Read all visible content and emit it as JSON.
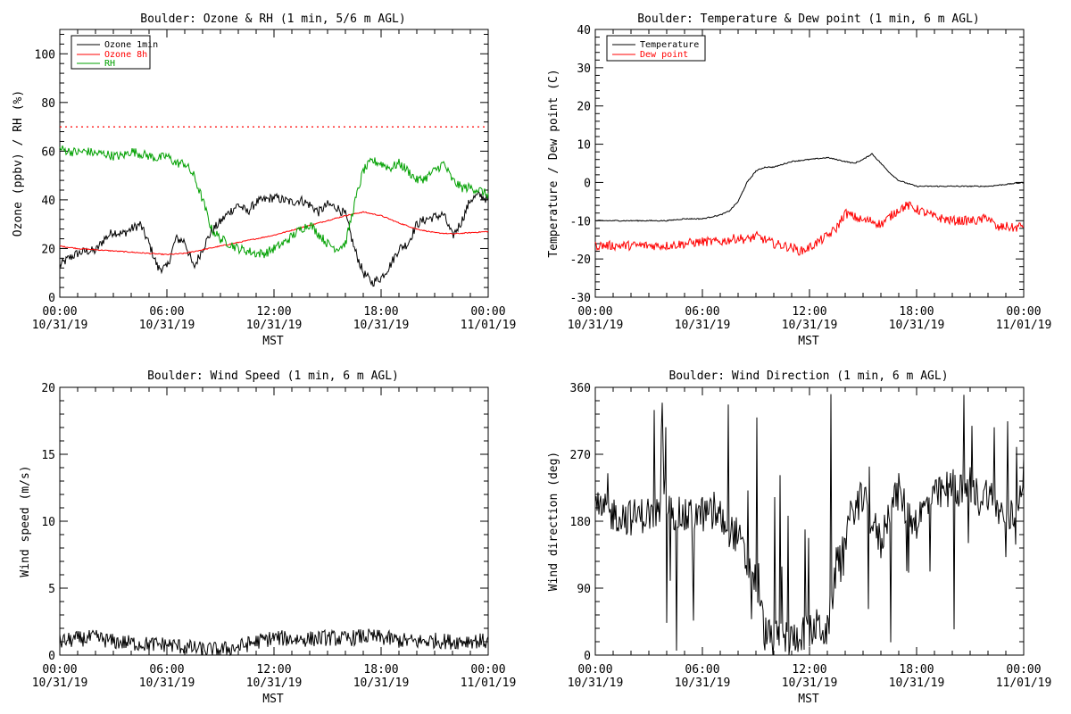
{
  "chart_data": [
    {
      "type": "line",
      "title": "Boulder: Ozone & RH (1 min, 5/6 m AGL)",
      "xlabel": "MST",
      "ylabel": "Ozone (ppbv) / RH (%)",
      "xlim": [
        0,
        24
      ],
      "ylim": [
        0,
        110
      ],
      "grid": false,
      "legend_position": "top-left",
      "x_ticks": [
        {
          "x": 0,
          "label": "00:00",
          "date": "10/31/19"
        },
        {
          "x": 6,
          "label": "06:00",
          "date": "10/31/19"
        },
        {
          "x": 12,
          "label": "12:00",
          "date": "10/31/19"
        },
        {
          "x": 18,
          "label": "18:00",
          "date": "10/31/19"
        },
        {
          "x": 24,
          "label": "00:00",
          "date": "11/01/19"
        }
      ],
      "y_ticks": [
        0,
        20,
        40,
        60,
        80,
        100
      ],
      "series": [
        {
          "name": "Ozone 1min",
          "color": "#000000",
          "style": "noisy",
          "x": [
            0,
            0.5,
            1,
            1.5,
            2,
            2.5,
            3,
            3.5,
            4,
            4.5,
            5,
            5.5,
            6,
            6.5,
            7,
            7.5,
            8,
            8.5,
            9,
            9.5,
            10,
            10.5,
            11,
            11.5,
            12,
            12.5,
            13,
            13.5,
            14,
            14.5,
            15,
            15.5,
            16,
            16.5,
            17,
            17.5,
            18,
            18.5,
            19,
            19.5,
            20,
            20.5,
            21,
            21.5,
            22,
            22.5,
            23,
            23.5,
            24
          ],
          "y": [
            13,
            16,
            18,
            19,
            19,
            24,
            27,
            26,
            28,
            30,
            22,
            12,
            12,
            24,
            23,
            12,
            20,
            27,
            31,
            35,
            38,
            35,
            39,
            40,
            41,
            40,
            39,
            40,
            38,
            35,
            38,
            37,
            34,
            20,
            10,
            6,
            8,
            13,
            20,
            22,
            30,
            32,
            33,
            34,
            25,
            31,
            40,
            42,
            40
          ]
        },
        {
          "name": "Ozone 8h",
          "color": "#ff0000",
          "style": "smooth",
          "x": [
            0,
            1,
            2,
            3,
            4,
            5,
            6,
            7,
            8,
            9,
            10,
            11,
            12,
            13,
            14,
            15,
            16,
            17,
            18,
            19,
            20,
            21,
            22,
            23,
            24
          ],
          "y": [
            21,
            20,
            19.5,
            19,
            18.5,
            18,
            17.5,
            18,
            19.5,
            21,
            22.5,
            24,
            25.5,
            27.5,
            29.5,
            31.5,
            33.5,
            35,
            33.5,
            30.5,
            28,
            26.5,
            26,
            26.5,
            27
          ]
        },
        {
          "name": "RH",
          "color": "#00a000",
          "style": "noisy",
          "x": [
            0,
            0.5,
            1,
            1.5,
            2,
            2.5,
            3,
            3.5,
            4,
            4.5,
            5,
            5.5,
            6,
            6.5,
            7,
            7.5,
            8,
            8.5,
            9,
            9.5,
            10,
            10.5,
            11,
            11.5,
            12,
            12.5,
            13,
            13.5,
            14,
            14.5,
            15,
            15.5,
            16,
            16.5,
            17,
            17.5,
            18,
            18.5,
            19,
            19.5,
            20,
            20.5,
            21,
            21.5,
            22,
            22.5,
            23,
            23.5,
            24
          ],
          "y": [
            61,
            60,
            59.5,
            60,
            59,
            59,
            58,
            58,
            60,
            59,
            58,
            57,
            58,
            55,
            55,
            50,
            40,
            28,
            24,
            22,
            20,
            19,
            18,
            18,
            20,
            22,
            25,
            28,
            30,
            26,
            22,
            20,
            22,
            38,
            52,
            56,
            55,
            53,
            55,
            52,
            48,
            49,
            52,
            55,
            48,
            45,
            45,
            44,
            42
          ]
        }
      ],
      "reference_lines": [
        {
          "y": 70,
          "color": "#ff0000",
          "style": "dotted"
        }
      ]
    },
    {
      "type": "line",
      "title": "Boulder: Temperature & Dew point (1 min, 6 m AGL)",
      "xlabel": "MST",
      "ylabel": "Temperature / Dew point (C)",
      "xlim": [
        0,
        24
      ],
      "ylim": [
        -30,
        40
      ],
      "grid": false,
      "legend_position": "top-left",
      "x_ticks": [
        {
          "x": 0,
          "label": "00:00",
          "date": "10/31/19"
        },
        {
          "x": 6,
          "label": "06:00",
          "date": "10/31/19"
        },
        {
          "x": 12,
          "label": "12:00",
          "date": "10/31/19"
        },
        {
          "x": 18,
          "label": "18:00",
          "date": "10/31/19"
        },
        {
          "x": 24,
          "label": "00:00",
          "date": "11/01/19"
        }
      ],
      "y_ticks": [
        -30,
        -20,
        -10,
        0,
        10,
        20,
        30,
        40
      ],
      "series": [
        {
          "name": "Temperature",
          "color": "#000000",
          "style": "smooth",
          "x": [
            0,
            1,
            2,
            3,
            4,
            5,
            6,
            7,
            7.5,
            8,
            8.5,
            9,
            9.5,
            10,
            11,
            12,
            13,
            14,
            14.5,
            15,
            15.5,
            16,
            16.5,
            17,
            18,
            19,
            20,
            21,
            22,
            23,
            24
          ],
          "y": [
            -10,
            -10,
            -10,
            -10,
            -10,
            -9.5,
            -9.5,
            -8.5,
            -7.5,
            -5,
            0,
            3,
            4,
            4,
            5.5,
            6,
            6.5,
            5.5,
            5,
            6,
            7.5,
            5,
            2.5,
            0.5,
            -1,
            -1,
            -1,
            -1,
            -1,
            -0.5,
            0
          ]
        },
        {
          "name": "Dew point",
          "color": "#ff0000",
          "style": "noisy",
          "x": [
            0,
            1,
            2,
            3,
            4,
            5,
            6,
            7,
            8,
            8.5,
            9,
            10,
            11,
            11.5,
            12,
            12.5,
            13,
            13.5,
            14,
            14.5,
            15,
            15.5,
            16,
            16.5,
            17,
            17.5,
            18,
            18.5,
            19,
            20,
            21,
            21.5,
            22,
            22.5,
            23,
            23.5,
            24
          ],
          "y": [
            -16.5,
            -16.5,
            -16.5,
            -16.5,
            -16.5,
            -16,
            -15.5,
            -15.5,
            -14.5,
            -15,
            -14,
            -16,
            -17,
            -18,
            -17,
            -15.5,
            -14,
            -12,
            -8,
            -9,
            -10,
            -10,
            -11,
            -9,
            -7,
            -6,
            -7,
            -8,
            -9,
            -10,
            -10,
            -10,
            -9,
            -12,
            -11.5,
            -12,
            -11
          ]
        }
      ]
    },
    {
      "type": "line",
      "title": "Boulder: Wind Speed (1 min, 6 m AGL)",
      "xlabel": "MST",
      "ylabel": "Wind speed (m/s)",
      "xlim": [
        0,
        24
      ],
      "ylim": [
        0,
        20
      ],
      "grid": false,
      "x_ticks": [
        {
          "x": 0,
          "label": "00:00",
          "date": "10/31/19"
        },
        {
          "x": 6,
          "label": "06:00",
          "date": "10/31/19"
        },
        {
          "x": 12,
          "label": "12:00",
          "date": "10/31/19"
        },
        {
          "x": 18,
          "label": "18:00",
          "date": "10/31/19"
        },
        {
          "x": 24,
          "label": "00:00",
          "date": "11/01/19"
        }
      ],
      "y_ticks": [
        0,
        5,
        10,
        15,
        20
      ],
      "series": [
        {
          "name": "",
          "color": "#000000",
          "style": "noisy",
          "x": [
            0,
            1,
            2,
            3,
            4,
            5,
            6,
            7,
            8,
            9,
            10,
            11,
            12,
            13,
            14,
            15,
            16,
            17,
            18,
            19,
            20,
            21,
            22,
            23,
            24
          ],
          "y": [
            1.0,
            1.2,
            1.3,
            1.0,
            0.9,
            0.8,
            0.8,
            0.6,
            0.4,
            0.4,
            0.6,
            1.0,
            1.3,
            1.2,
            1.2,
            1.3,
            1.2,
            1.4,
            1.3,
            1.1,
            1.0,
            1.1,
            1.0,
            1.1,
            1.0
          ]
        }
      ]
    },
    {
      "type": "line",
      "title": "Boulder: Wind Direction (1 min, 6 m AGL)",
      "xlabel": "MST",
      "ylabel": "Wind direction (deg)",
      "xlim": [
        0,
        24
      ],
      "ylim": [
        0,
        360
      ],
      "grid": false,
      "x_ticks": [
        {
          "x": 0,
          "label": "00:00",
          "date": "10/31/19"
        },
        {
          "x": 6,
          "label": "06:00",
          "date": "10/31/19"
        },
        {
          "x": 12,
          "label": "12:00",
          "date": "10/31/19"
        },
        {
          "x": 18,
          "label": "18:00",
          "date": "10/31/19"
        },
        {
          "x": 24,
          "label": "00:00",
          "date": "11/01/19"
        }
      ],
      "y_ticks": [
        0,
        90,
        180,
        270,
        360
      ],
      "series": [
        {
          "name": "",
          "color": "#000000",
          "style": "spiky",
          "x": [
            0,
            1,
            2,
            3,
            4,
            5,
            6,
            7,
            7.5,
            8,
            8.5,
            9,
            9.5,
            10,
            10.5,
            11,
            11.5,
            12,
            12.5,
            13,
            13.5,
            14,
            14.5,
            15,
            15.5,
            16,
            16.5,
            17,
            17.5,
            18,
            18.5,
            19,
            19.5,
            20,
            20.5,
            21,
            21.5,
            22,
            22.5,
            23,
            23.5,
            24
          ],
          "y": [
            195,
            190,
            185,
            190,
            195,
            185,
            190,
            185,
            170,
            160,
            120,
            100,
            30,
            20,
            25,
            20,
            30,
            30,
            40,
            30,
            120,
            160,
            200,
            210,
            180,
            150,
            200,
            220,
            190,
            180,
            200,
            210,
            220,
            230,
            220,
            230,
            210,
            220,
            200,
            180,
            190,
            250
          ]
        }
      ]
    }
  ]
}
